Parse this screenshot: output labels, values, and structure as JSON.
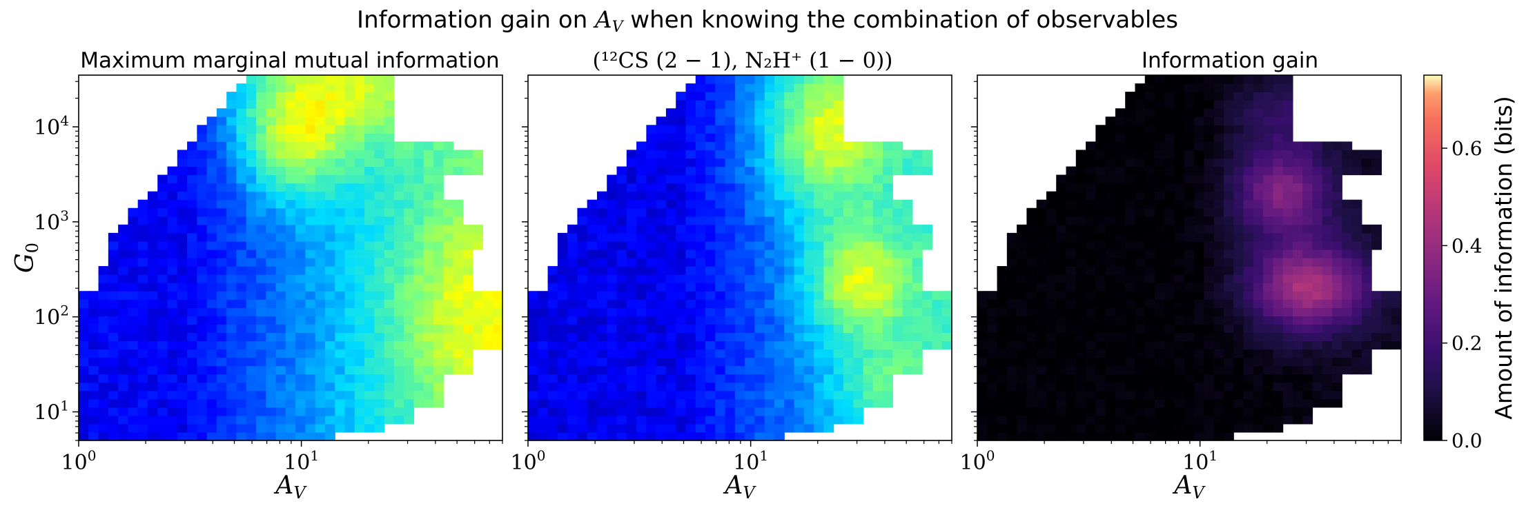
{
  "figure": {
    "suptitle_prefix": "Information gain on ",
    "suptitle_var": "A",
    "suptitle_sub": "V",
    "suptitle_suffix": " when knowing the combination of observables"
  },
  "chart_data": [
    {
      "type": "heatmap",
      "title": "Maximum marginal mutual information",
      "xlabel": "A_V",
      "ylabel": "G_0",
      "xscale": "log",
      "yscale": "log",
      "xlim": [
        1,
        80
      ],
      "ylim": [
        5,
        35000
      ],
      "xticks": [
        "10^0",
        "10^1"
      ],
      "yticks": [
        "10^1",
        "10^2",
        "10^3",
        "10^4"
      ],
      "colormap": "jet",
      "value_range": [
        0,
        0.75
      ]
    },
    {
      "type": "heatmap",
      "title_text": "(¹²CS (2 − 1), N₂H⁺ (1 − 0))",
      "xlabel": "A_V",
      "xscale": "log",
      "yscale": "log",
      "xlim": [
        1,
        80
      ],
      "ylim": [
        5,
        35000
      ],
      "xticks": [
        "10^0",
        "10^1"
      ],
      "colormap": "jet",
      "value_range": [
        0,
        0.75
      ]
    },
    {
      "type": "heatmap",
      "title": "Information gain",
      "xlabel": "A_V",
      "xscale": "log",
      "yscale": "log",
      "xlim": [
        1,
        80
      ],
      "ylim": [
        5,
        35000
      ],
      "xticks": [
        "10^0",
        "10^1"
      ],
      "colormap": "magma",
      "value_range": [
        0,
        0.75
      ]
    }
  ],
  "colorbar": {
    "label": "Amount of information (bits)",
    "ticks": [
      "0.0",
      "0.2",
      "0.4",
      "0.6"
    ],
    "tick_values": [
      0.0,
      0.2,
      0.4,
      0.6
    ],
    "range": [
      0,
      0.75
    ],
    "colormap": "magma"
  }
}
